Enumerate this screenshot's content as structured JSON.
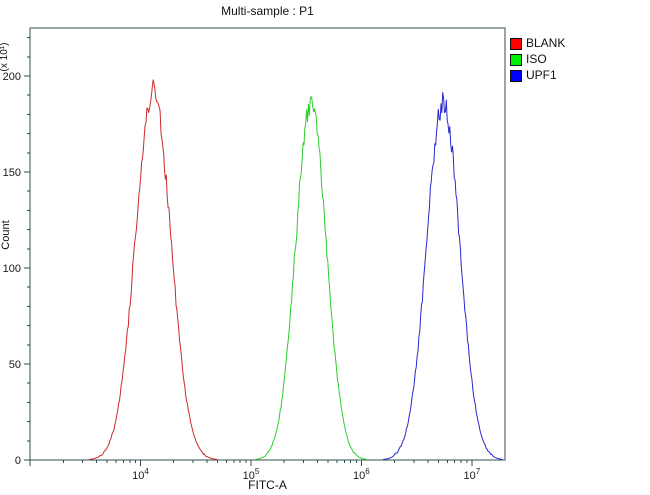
{
  "window": {
    "background": "#ffffff"
  },
  "chart_data": {
    "type": "line",
    "subtype": "flow-cytometry-histogram",
    "title": "Multi-sample : P1",
    "xlabel": "FITC-A",
    "ylabel": "Count",
    "y_multiplier_label": "(x 10¹)",
    "x_scale": "log10",
    "xlim_log10": [
      3.0,
      7.3
    ],
    "ylim": [
      0,
      225
    ],
    "yticks": [
      0,
      50,
      100,
      150,
      200
    ],
    "ytick_minor_step": 10,
    "xticks_log10": [
      4,
      5,
      6,
      7
    ],
    "grid": false,
    "legend_position": "top-right-outside",
    "frame_color": "#2f4f4f",
    "tick_text_color": "#1a1a1a",
    "series": [
      {
        "name": "BLANK",
        "color": "#cc2a2a",
        "legend_color": "#ff0000",
        "peak_x": 13000,
        "peak_count": 192,
        "sigma_log10": 0.16,
        "approx_range_x": [
          3500,
          48000
        ]
      },
      {
        "name": "ISO",
        "color": "#2ecc2e",
        "legend_color": "#00ee00",
        "peak_x": 350000,
        "peak_count": 185,
        "sigma_log10": 0.14,
        "approx_range_x": [
          110000,
          1100000
        ]
      },
      {
        "name": "UPF1",
        "color": "#2a2acc",
        "legend_color": "#0000ff",
        "peak_x": 5500000,
        "peak_count": 186,
        "sigma_log10": 0.15,
        "approx_range_x": [
          1800000,
          16000000
        ]
      }
    ]
  }
}
